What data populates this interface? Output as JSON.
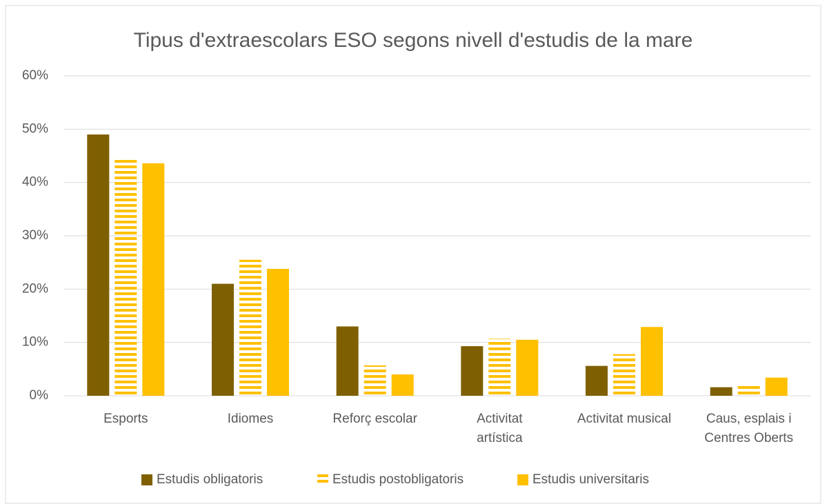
{
  "chart_data": {
    "type": "bar",
    "title": "Tipus d'extraescolars ESO segons nivell d'estudis de la mare",
    "categories": [
      "Esports",
      "Idiomes",
      "Reforç escolar",
      "Activitat\nartística",
      "Activitat musical",
      "Caus, esplais i\nCentres Oberts"
    ],
    "series": [
      {
        "name": "Estudis obligatoris",
        "color": "#7f6000",
        "values": [
          49.0,
          21.0,
          13.0,
          9.3,
          5.6,
          1.6
        ]
      },
      {
        "name": "Estudis postobligatoris",
        "color": "#ffc000",
        "pattern": "horizontal-stripes",
        "values": [
          44.5,
          25.5,
          5.7,
          10.7,
          7.8,
          2.3
        ]
      },
      {
        "name": "Estudis universitaris",
        "color": "#ffc000",
        "values": [
          43.6,
          23.8,
          4.0,
          10.5,
          12.9,
          3.4
        ]
      }
    ],
    "ylim": [
      0,
      60
    ],
    "yticks": [
      {
        "value": 0,
        "label": "0%"
      },
      {
        "value": 10,
        "label": "10%"
      },
      {
        "value": 20,
        "label": "20%"
      },
      {
        "value": 30,
        "label": "30%"
      },
      {
        "value": 40,
        "label": "40%"
      },
      {
        "value": 50,
        "label": "50%"
      },
      {
        "value": 60,
        "label": "60%"
      }
    ],
    "grid": true,
    "legend": "bottom"
  }
}
